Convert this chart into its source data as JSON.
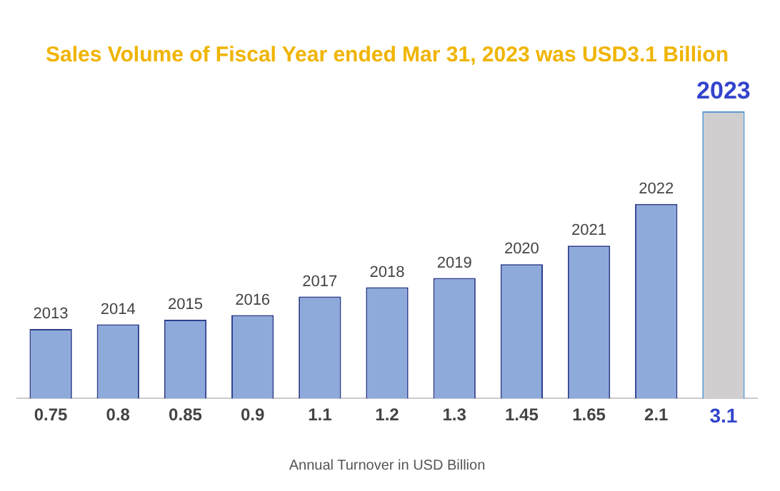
{
  "chart_data": {
    "type": "bar",
    "title": "Sales Volume of Fiscal Year ended Mar 31, 2023 was USD3.1 Billion",
    "xlabel": "Annual Turnover in USD Billion",
    "categories": [
      "2013",
      "2014",
      "2015",
      "2016",
      "2017",
      "2018",
      "2019",
      "2020",
      "2021",
      "2022",
      "2023"
    ],
    "values": [
      0.75,
      0.8,
      0.85,
      0.9,
      1.1,
      1.2,
      1.3,
      1.45,
      1.65,
      2.1,
      3.1
    ],
    "colors": [
      "#8eaadb",
      "#8eaadb",
      "#8eaadb",
      "#8eaadb",
      "#8eaadb",
      "#8eaadb",
      "#8eaadb",
      "#8eaadb",
      "#8eaadb",
      "#8eaadb",
      "#d0cece"
    ],
    "data_labels": true,
    "grid": false,
    "legend": false
  }
}
